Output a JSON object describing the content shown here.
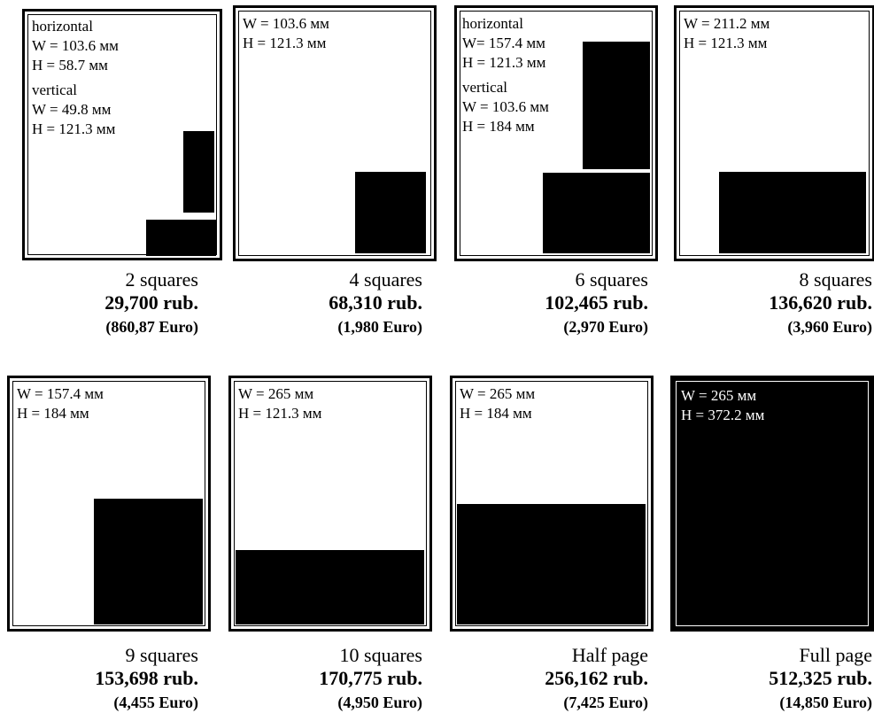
{
  "unit": "мм",
  "panels": [
    {
      "specs": [
        "horizontal",
        "W = 103.6 мм",
        "H = 58.7 мм",
        "vertical",
        "W = 49.8 мм",
        "H = 121.3 мм"
      ],
      "size": "2 squares",
      "price_rub": "29,700 rub.",
      "price_eur": "(860,87 Euro)"
    },
    {
      "specs": [
        "W = 103.6 мм",
        "H = 121.3 мм"
      ],
      "size": "4 squares",
      "price_rub": "68,310 rub.",
      "price_eur": "(1,980 Euro)"
    },
    {
      "specs": [
        "horizontal",
        "W= 157.4 мм",
        "H = 121.3 мм",
        "vertical",
        "W = 103.6 мм",
        "H = 184 мм"
      ],
      "size": "6 squares",
      "price_rub": "102,465 rub.",
      "price_eur": "(2,970 Euro)"
    },
    {
      "specs": [
        "W = 211.2 мм",
        "H = 121.3 мм"
      ],
      "size": "8 squares",
      "price_rub": "136,620 rub.",
      "price_eur": "(3,960 Euro)"
    },
    {
      "specs": [
        "W = 157.4 мм",
        "H = 184 мм"
      ],
      "size": "9 squares",
      "price_rub": "153,698 rub.",
      "price_eur": "(4,455 Euro)"
    },
    {
      "specs": [
        "W = 265 мм",
        "H = 121.3 мм"
      ],
      "size": "10 squares",
      "price_rub": "170,775 rub.",
      "price_eur": "(4,950 Euro)"
    },
    {
      "specs": [
        "W = 265 мм",
        "H = 184 мм"
      ],
      "size": "Half page",
      "price_rub": "256,162 rub.",
      "price_eur": "(7,425 Euro)"
    },
    {
      "specs": [
        "W = 265 мм",
        "H = 372.2 мм"
      ],
      "size": "Full page",
      "price_rub": "512,325 rub.",
      "price_eur": "(14,850 Euro)"
    }
  ]
}
